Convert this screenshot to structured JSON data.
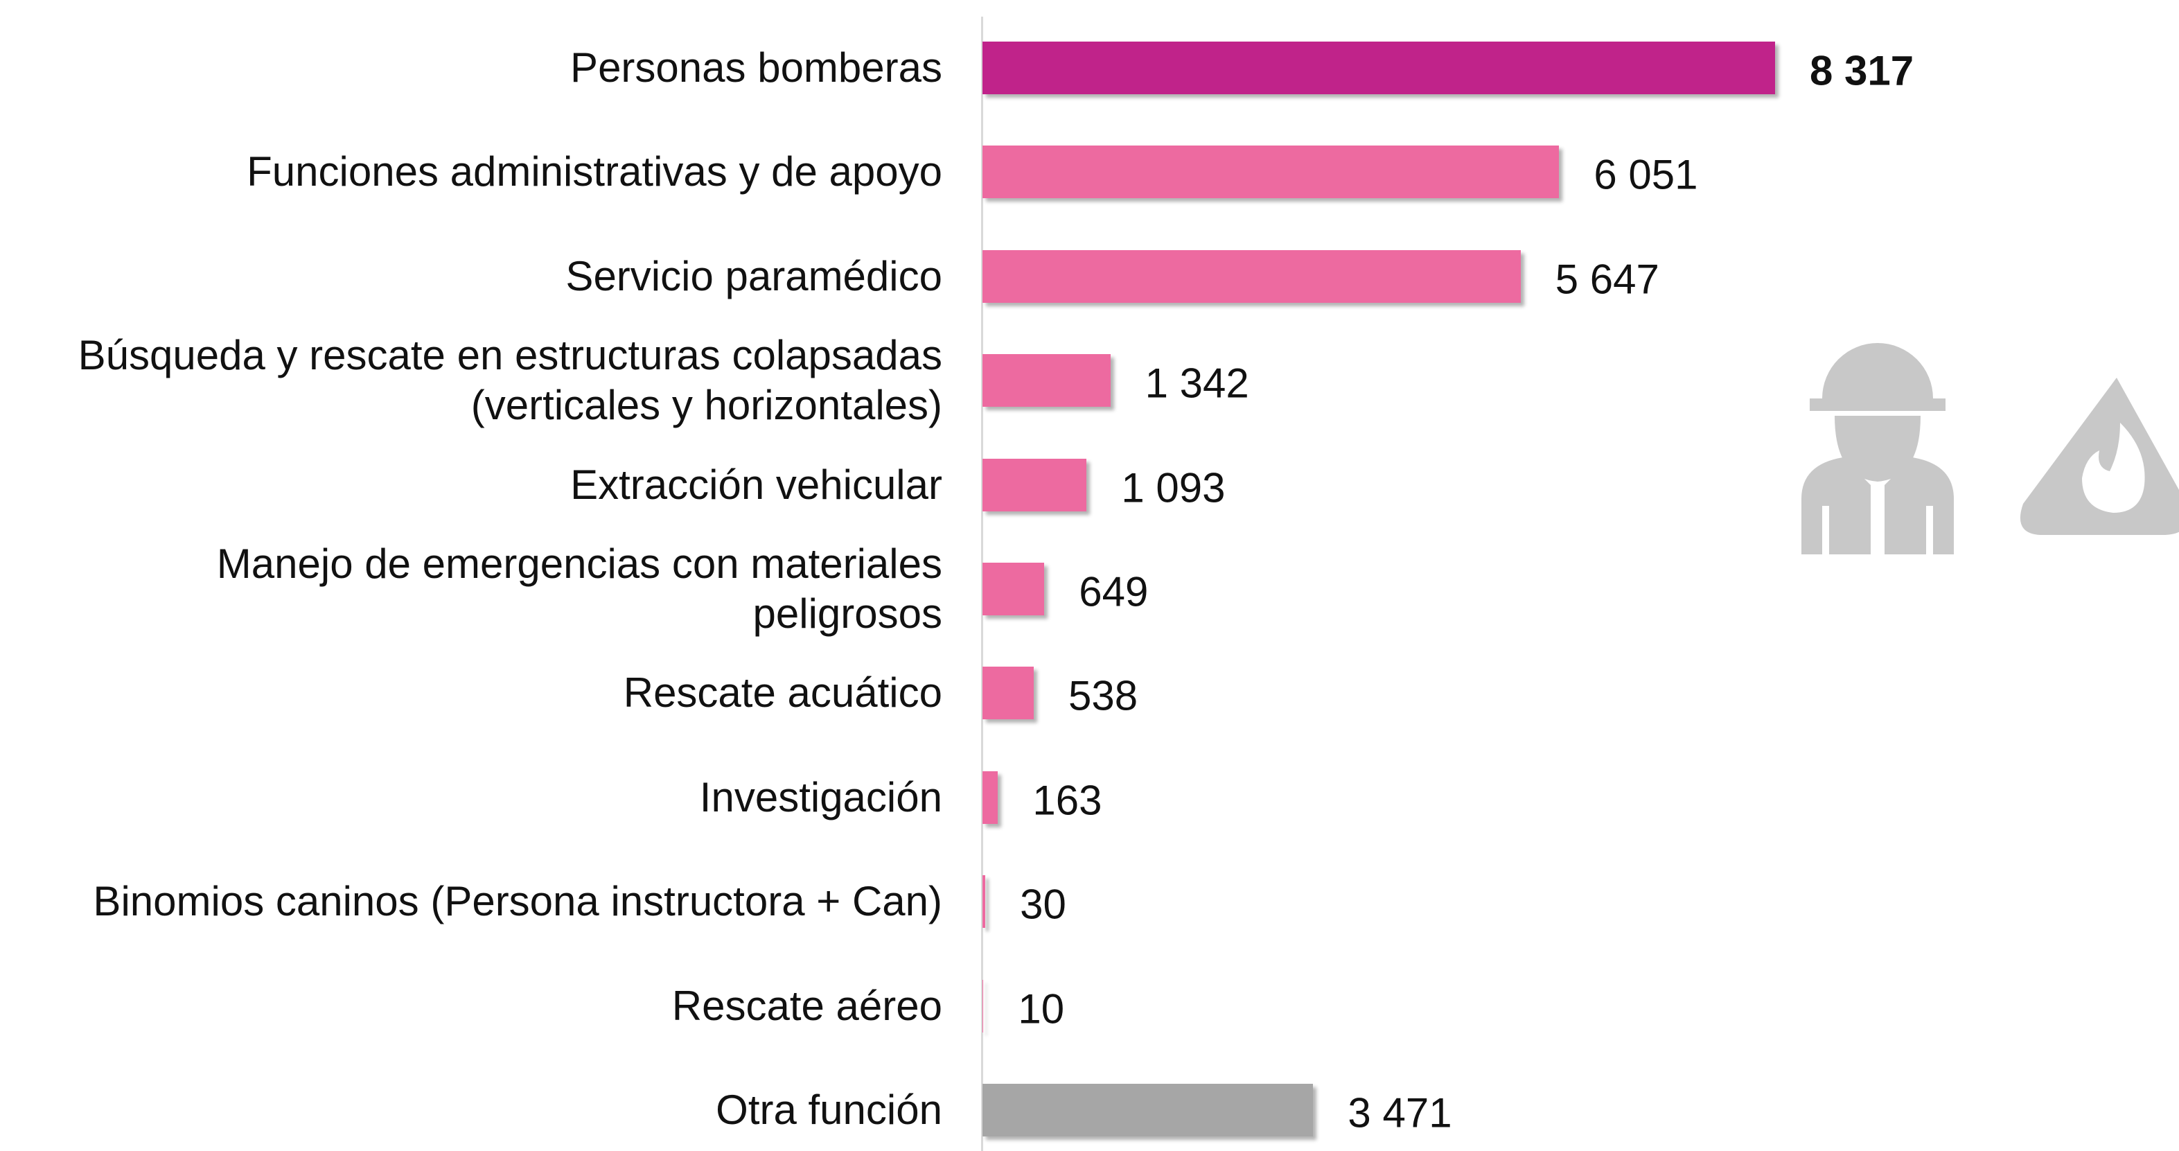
{
  "chart_data": {
    "type": "barh",
    "categories": [
      "Personas bomberas",
      "Funciones administrativas y de apoyo",
      "Servicio paramédico",
      "Búsqueda y rescate en estructuras colapsadas\n(verticales y horizontales)",
      "Extracción vehicular",
      "Manejo de emergencias con materiales\npeligrosos",
      "Rescate acuático",
      "Investigación",
      "Binomios caninos (Persona instructora + Can)",
      "Rescate aéreo",
      "Otra función"
    ],
    "values": [
      8317,
      6051,
      5647,
      1342,
      1093,
      649,
      538,
      163,
      30,
      10,
      3471
    ],
    "value_labels": [
      "8 317",
      "6 051",
      "5 647",
      "1 342",
      "1 093",
      "649",
      "538",
      "163",
      "30",
      "10",
      "3 471"
    ],
    "colors": [
      "#c0238a",
      "#ed6aa0",
      "#ed6aa0",
      "#ed6aa0",
      "#ed6aa0",
      "#ed6aa0",
      "#ed6aa0",
      "#ed6aa0",
      "#ed6aa0",
      "#ed6aa0",
      "#a6a6a6"
    ]
  }
}
